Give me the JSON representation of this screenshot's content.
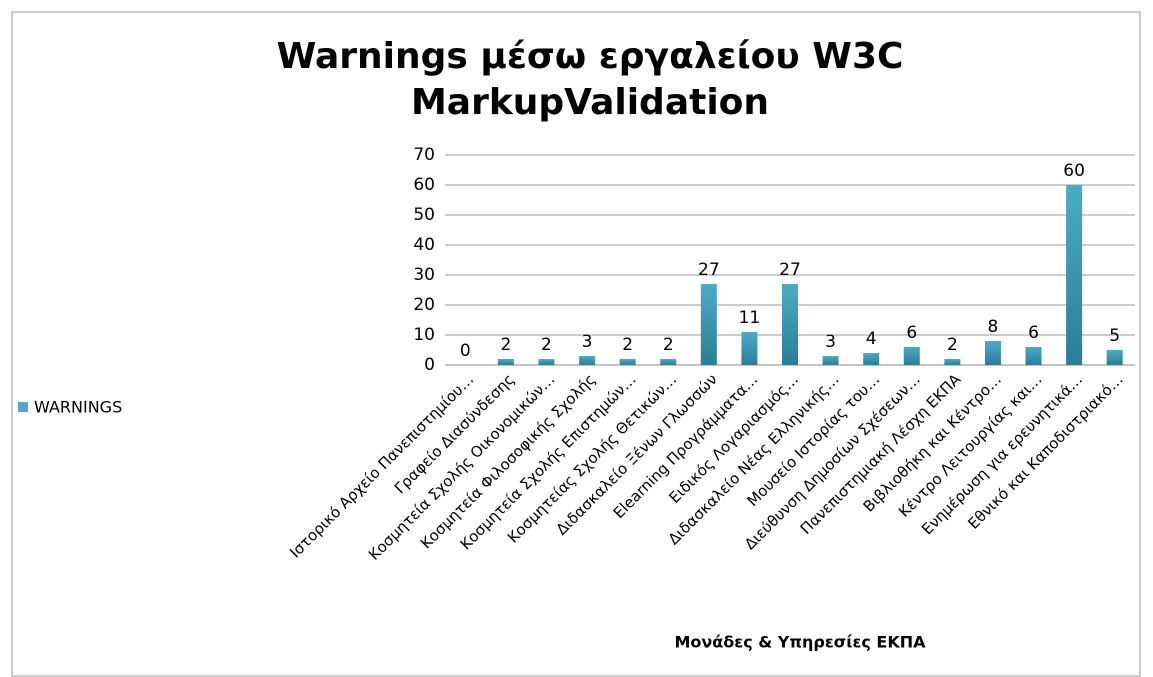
{
  "chart_data": {
    "type": "bar",
    "title": "Warnings μέσω εργαλείου W3C MarkupValidation",
    "x_label": "Μονάδες & Υπηρεσίες ΕΚΠΑ",
    "categories": [
      "Ιστορικό Αρχείο Πανεπιστημίου…",
      "Γραφείο Διασύνδεσης",
      "Κοσμητεία Σχολής Οικονομικών…",
      "Κοσμητεία Φιλοσοφικής Σχολής",
      "Κοσμητεία Σχολής Επιστημών…",
      "Κοσμητείας Σχολής Θετικών…",
      "Διδασκαλείο Ξένων Γλωσσών",
      "Elearning Προγράμματα…",
      "Ειδικός Λογαριασμός…",
      "Διδασκαλείο Νέας Ελληνικής…",
      "Μουσείο Ιστορίας του…",
      "Διεύθυνση Δημοσίων Σχέσεων…",
      "Πανεπιστημιακή Λέσχη ΕΚΠΑ",
      "Βιβλιοθήκη και Κέντρο…",
      "Κέντρο Λειτουργίας και…",
      "Ενημέρωση για ερευνητικά…",
      "Εθνικό και Καποδιστριακό…"
    ],
    "series": [
      {
        "name": "WARNINGS",
        "color": "#4bacc6",
        "values": [
          0,
          2,
          2,
          3,
          2,
          2,
          27,
          11,
          27,
          3,
          4,
          6,
          2,
          8,
          6,
          60,
          5
        ]
      }
    ],
    "ylim": [
      0,
      70
    ],
    "yticks": [
      0,
      10,
      20,
      30,
      40,
      50,
      60,
      70
    ],
    "grid": true,
    "legend": "left"
  }
}
